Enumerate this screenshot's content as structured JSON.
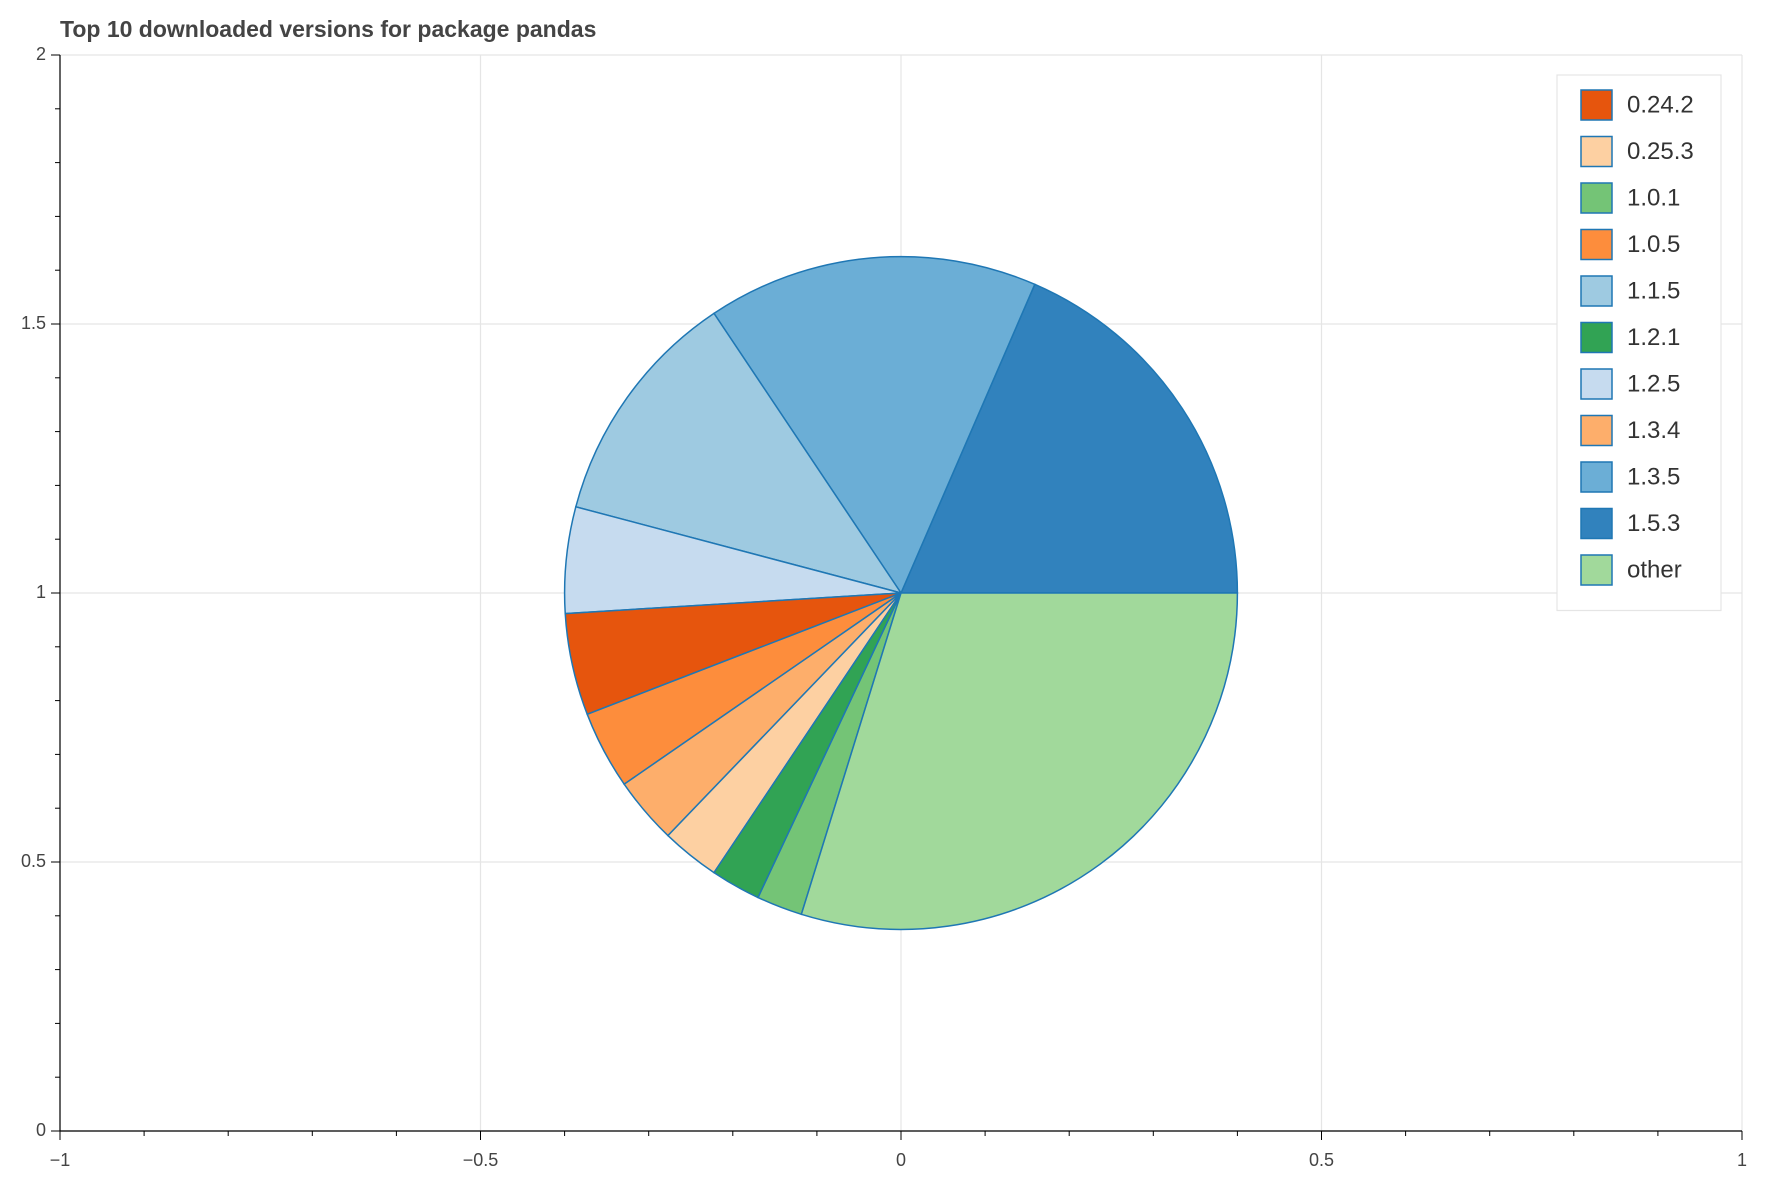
{
  "chart_data": {
    "type": "pie",
    "title": "Top 10 downloaded versions for package pandas",
    "categories": [
      "1.5.3",
      "1.3.5",
      "1.1.5",
      "1.2.5",
      "0.24.2",
      "1.0.5",
      "1.3.4",
      "0.25.3",
      "1.2.1",
      "1.0.1",
      "other"
    ],
    "values": [
      18.5,
      15.9,
      11.5,
      5.1,
      4.9,
      3.75,
      3.2,
      2.8,
      2.4,
      2.2,
      29.8
    ],
    "colors": [
      "#3182bd",
      "#6baed6",
      "#9ecae1",
      "#c6dbef",
      "#e6550d",
      "#fd8d3c",
      "#fdae6b",
      "#fdd0a2",
      "#31a354",
      "#74c476",
      "#a1d99b"
    ],
    "line_color": "#1f77b4",
    "xlim": [
      -1,
      1
    ],
    "ylim": [
      0,
      2
    ],
    "xticks": [
      {
        "value": -1,
        "label": "−1"
      },
      {
        "value": -0.5,
        "label": "−0.5"
      },
      0,
      0.5,
      1
    ],
    "yticks": [
      0,
      0.5,
      1,
      1.5,
      2
    ],
    "grid": true,
    "legend": "top-right"
  }
}
